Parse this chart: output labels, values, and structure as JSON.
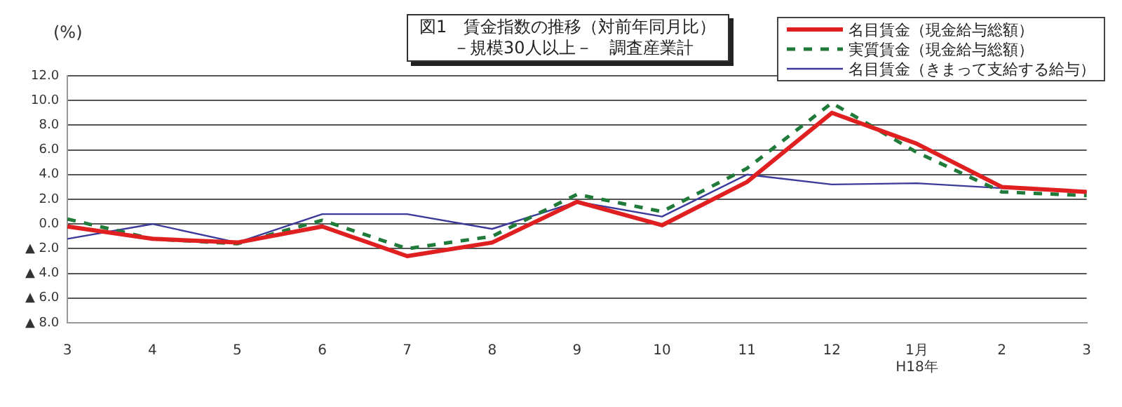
{
  "chart_data": {
    "type": "line",
    "title": "図1　賃金指数の推移（対前年同月比）",
    "subtitle": "－規模30人以上－　調査産業計",
    "ylabel": "(%)",
    "categories": [
      "3",
      "4",
      "5",
      "6",
      "7",
      "8",
      "9",
      "10",
      "11",
      "12",
      "1月\nH18年",
      "2",
      "3"
    ],
    "series": [
      {
        "name": "名目賃金（現金給与総額）",
        "color": "#e02020",
        "line_style": "solid",
        "values": [
          -0.2,
          -1.2,
          -1.5,
          -0.2,
          -2.6,
          -1.5,
          1.8,
          -0.1,
          3.4,
          9.0,
          6.5,
          3.0,
          2.6
        ]
      },
      {
        "name": "実質賃金（現金給与総額）",
        "color": "#207a3a",
        "line_style": "dashed",
        "values": [
          0.4,
          -1.2,
          -1.6,
          0.3,
          -2.0,
          -1.0,
          2.4,
          1.0,
          4.5,
          9.8,
          5.8,
          2.6,
          2.3
        ]
      },
      {
        "name": "名目賃金（きまって支給する給与）",
        "color": "#3a3a9a",
        "line_style": "solid",
        "values": [
          -1.2,
          0.0,
          -1.5,
          0.8,
          0.8,
          -0.4,
          1.8,
          0.6,
          4.0,
          3.2,
          3.3,
          2.9,
          2.6
        ]
      }
    ],
    "ylim": [
      -8,
      12
    ],
    "yticks": [
      {
        "value": -8,
        "label": "▲ 8.0"
      },
      {
        "value": -6,
        "label": "▲ 6.0"
      },
      {
        "value": -4,
        "label": "▲ 4.0"
      },
      {
        "value": -2,
        "label": "▲ 2.0"
      },
      {
        "value": 0,
        "label": "0.0"
      },
      {
        "value": 2,
        "label": "2.0"
      },
      {
        "value": 4,
        "label": "4.0"
      },
      {
        "value": 6,
        "label": "6.0"
      },
      {
        "value": 8,
        "label": "8.0"
      },
      {
        "value": 10,
        "label": "10.0"
      },
      {
        "value": 12,
        "label": "12.0"
      }
    ],
    "grid": "y",
    "legend": "top right",
    "marker": "none"
  }
}
